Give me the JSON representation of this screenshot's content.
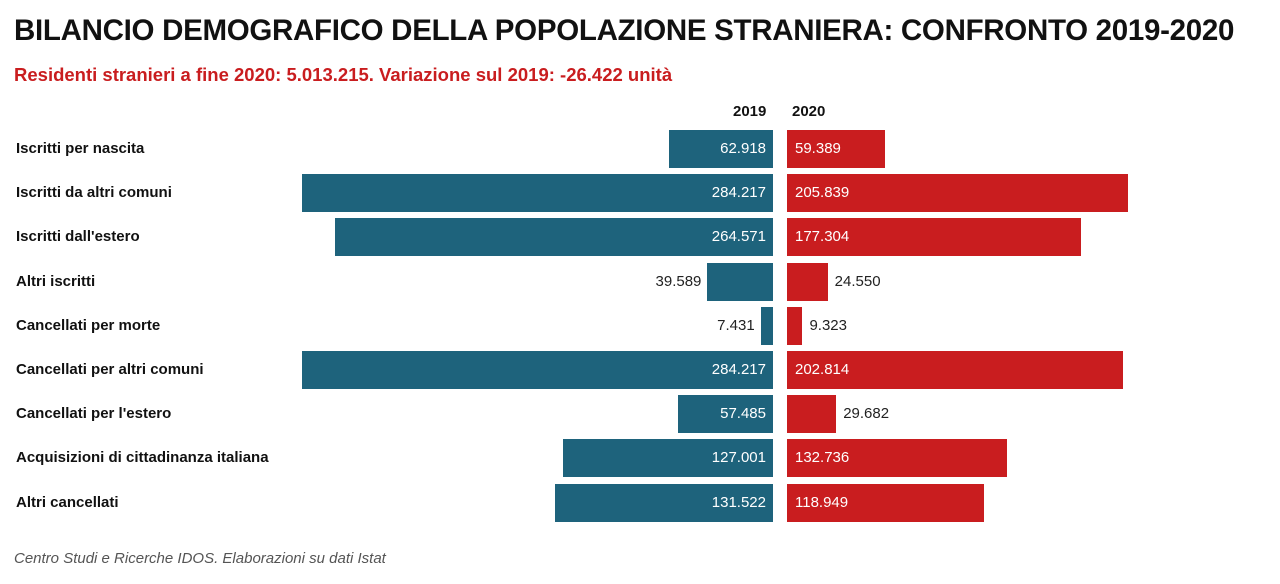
{
  "title": "BILANCIO DEMOGRAFICO DELLA POPOLAZIONE STRANIERA: CONFRONTO 2019-2020",
  "subtitle": "Residenti stranieri a fine 2020: 5.013.215. Variazione sul 2019: -26.422 unità",
  "source": "Centro Studi e Ricerche IDOS. Elaborazioni su dati Istat",
  "colors": {
    "y2019": "#1e637c",
    "y2020": "#c91d1f"
  },
  "chart_data": {
    "type": "bar",
    "orientation": "horizontal-diverging",
    "categories": [
      "Iscritti per nascita",
      "Iscritti da altri comuni",
      "Iscritti dall'estero",
      "Altri iscritti",
      "Cancellati per morte",
      "Cancellati per altri comuni",
      "Cancellati per l'estero",
      "Acquisizioni di cittadinanza italiana",
      "Altri cancellati"
    ],
    "series": [
      {
        "name": "2019",
        "values": [
          62918,
          284217,
          264571,
          39589,
          7431,
          284217,
          57485,
          127001,
          131522
        ],
        "labels": [
          "62.918",
          "284.217",
          "264.571",
          "39.589",
          "7.431",
          "284.217",
          "57.485",
          "127.001",
          "131.522"
        ]
      },
      {
        "name": "2020",
        "values": [
          59389,
          205839,
          177304,
          24550,
          9323,
          202814,
          29682,
          132736,
          118949
        ],
        "labels": [
          "59.389",
          "205.839",
          "177.304",
          "24.550",
          "9.323",
          "202.814",
          "29.682",
          "132.736",
          "118.949"
        ]
      }
    ]
  }
}
